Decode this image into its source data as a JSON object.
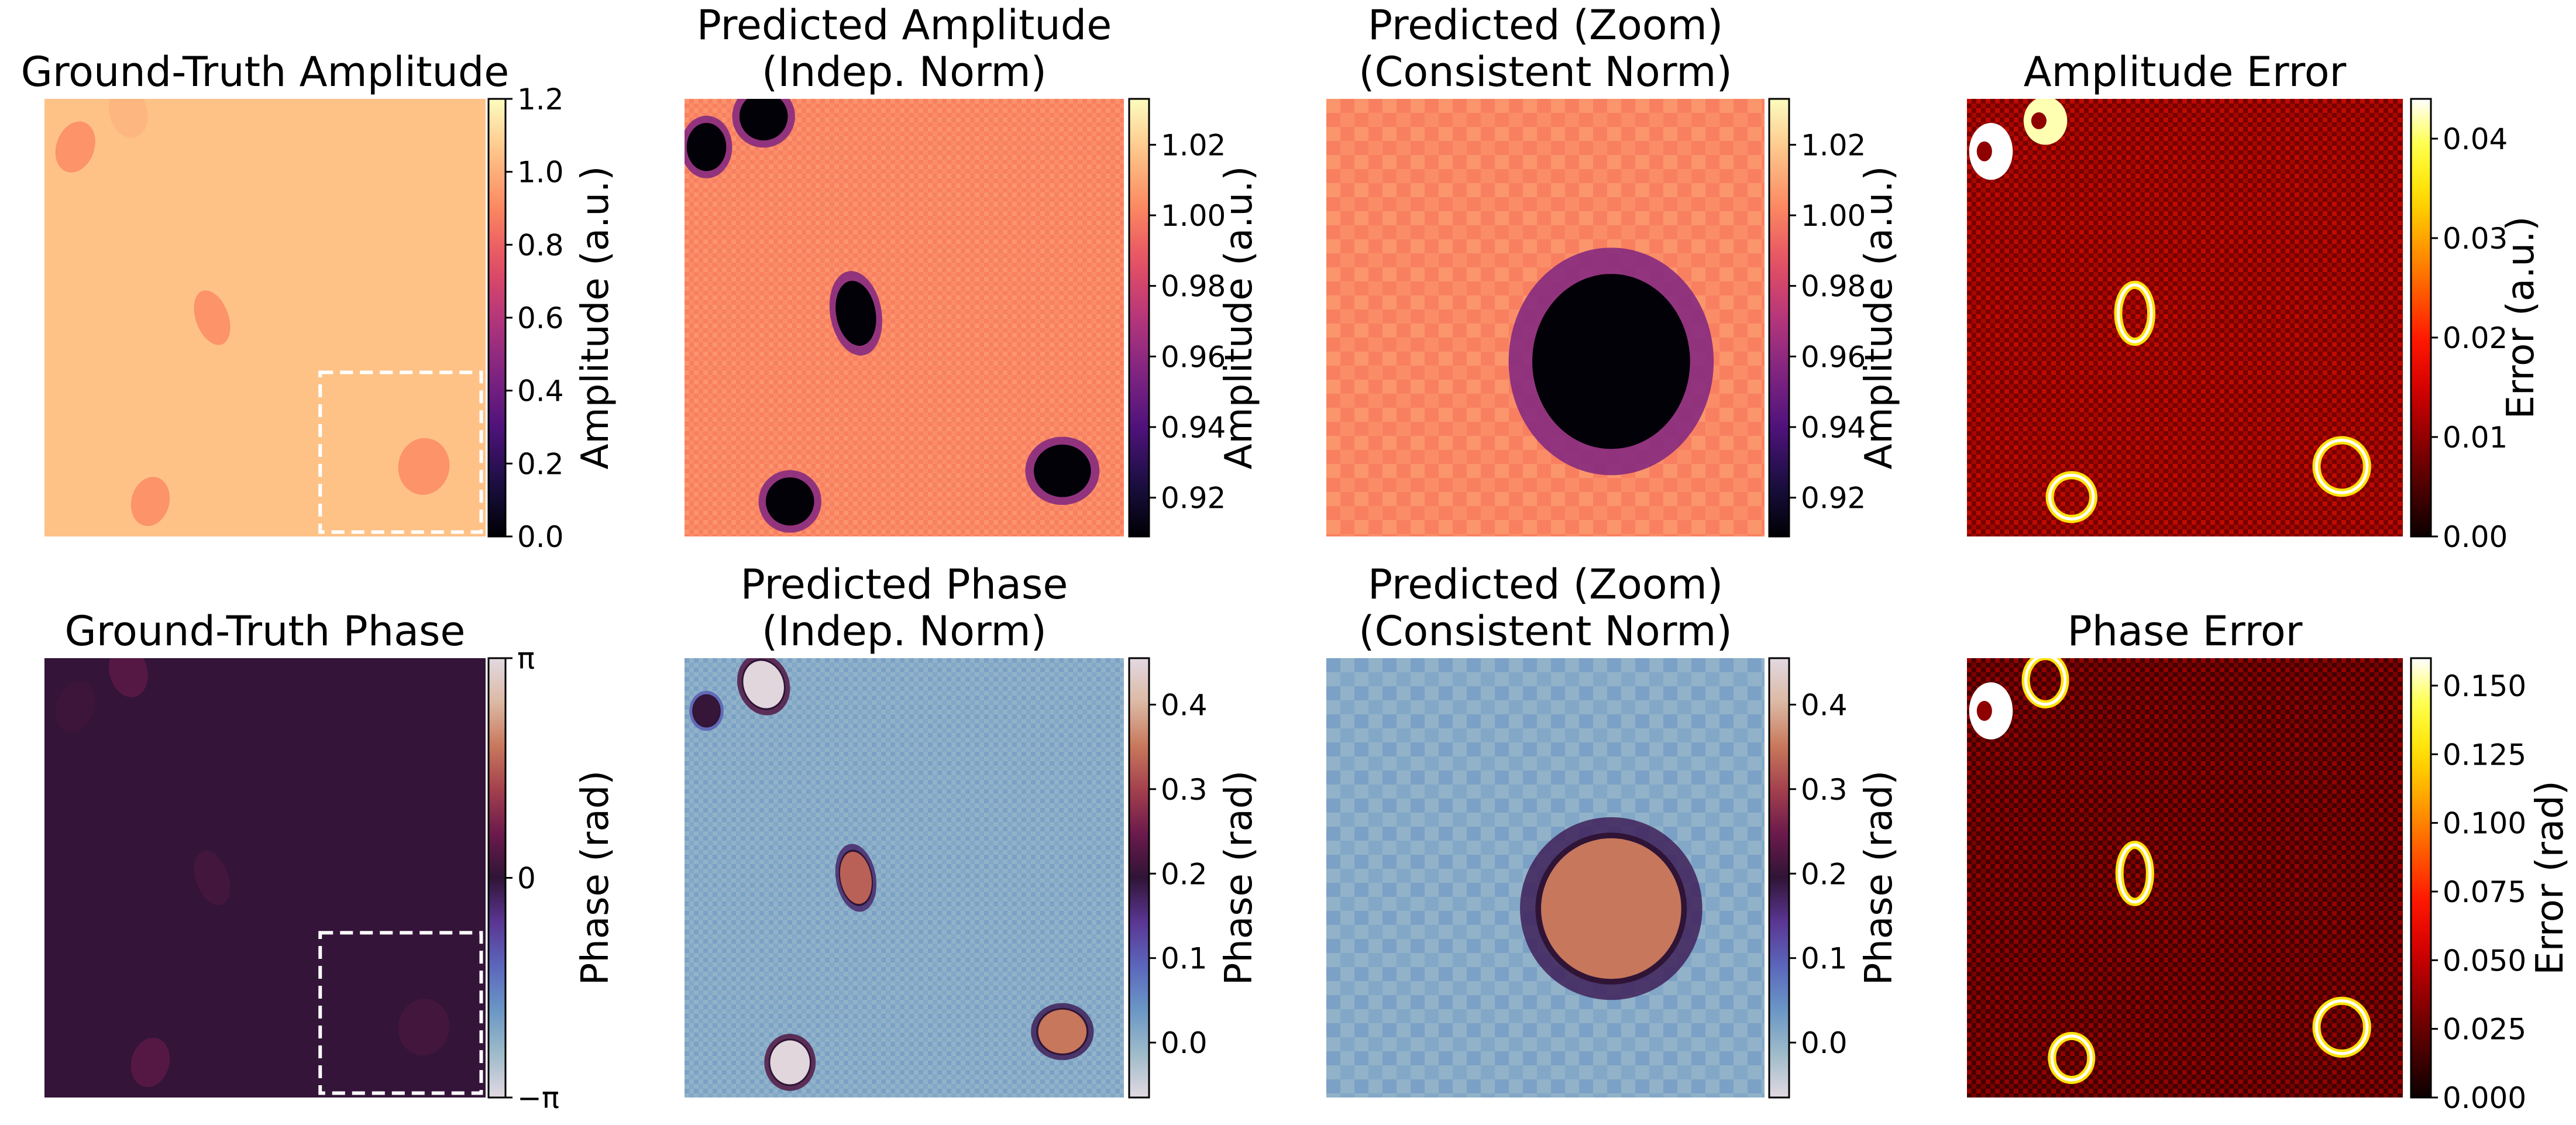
{
  "chart_data": [
    {
      "type": "heatmap",
      "id": "gt-amplitude",
      "title": [
        "Ground-Truth Amplitude"
      ],
      "colormap": "magma",
      "colorbar": {
        "label": "Amplitude (a.u.)",
        "range": [
          0.0,
          1.2
        ],
        "ticks": [
          0.0,
          0.2,
          0.4,
          0.6,
          0.8,
          1.0,
          1.2
        ],
        "tick_labels": [
          "0.0",
          "0.2",
          "0.4",
          "0.6",
          "0.8",
          "1.0",
          "1.2"
        ]
      },
      "background_value": 1.05,
      "blobs": [
        {
          "cx": 0.07,
          "cy": 0.11,
          "rx": 0.043,
          "ry": 0.06,
          "value": 0.93,
          "rotation": 20
        },
        {
          "cx": 0.19,
          "cy": 0.03,
          "rx": 0.043,
          "ry": 0.06,
          "value": 1.02,
          "rotation": -15
        },
        {
          "cx": 0.38,
          "cy": 0.5,
          "rx": 0.037,
          "ry": 0.065,
          "value": 0.93,
          "rotation": -20
        },
        {
          "cx": 0.24,
          "cy": 0.92,
          "rx": 0.043,
          "ry": 0.057,
          "value": 0.93,
          "rotation": 15
        },
        {
          "cx": 0.86,
          "cy": 0.84,
          "rx": 0.058,
          "ry": 0.065,
          "value": 0.93,
          "rotation": 10
        }
      ],
      "zoom_box": {
        "x0": 0.625,
        "y0": 0.625,
        "x1": 0.99,
        "y1": 0.99,
        "style": "dashed",
        "color": "#ffffff"
      }
    },
    {
      "type": "heatmap",
      "id": "pred-amplitude",
      "title": [
        "Predicted Amplitude",
        "(Indep. Norm)"
      ],
      "colormap": "magma",
      "colorbar": {
        "label": "Amplitude (a.u.)",
        "range": [
          0.909,
          1.033
        ],
        "ticks": [
          0.92,
          0.94,
          0.96,
          0.98,
          1.0,
          1.02
        ],
        "tick_labels": [
          "0.92",
          "0.94",
          "0.96",
          "0.98",
          "1.00",
          "1.02"
        ]
      },
      "background_value": 1.0,
      "blobs": [
        {
          "cx": 0.05,
          "cy": 0.11,
          "rx": 0.045,
          "ry": 0.055,
          "value": 0.91,
          "rotation": 0
        },
        {
          "cx": 0.18,
          "cy": 0.04,
          "rx": 0.055,
          "ry": 0.055,
          "value": 0.91,
          "rotation": 0
        },
        {
          "cx": 0.39,
          "cy": 0.49,
          "rx": 0.045,
          "ry": 0.075,
          "value": 0.91,
          "rotation": -10
        },
        {
          "cx": 0.24,
          "cy": 0.92,
          "rx": 0.055,
          "ry": 0.055,
          "value": 0.91,
          "rotation": 0
        },
        {
          "cx": 0.86,
          "cy": 0.85,
          "rx": 0.065,
          "ry": 0.06,
          "value": 0.91,
          "rotation": 0
        }
      ]
    },
    {
      "type": "heatmap",
      "id": "pred-amplitude-zoom",
      "title": [
        "Predicted (Zoom)",
        "(Consistent Norm)"
      ],
      "colormap": "magma",
      "colorbar": {
        "label": "Amplitude (a.u.)",
        "range": [
          0.909,
          1.033
        ],
        "ticks": [
          0.92,
          0.94,
          0.96,
          0.98,
          1.0,
          1.02
        ],
        "tick_labels": [
          "0.92",
          "0.94",
          "0.96",
          "0.98",
          "1.00",
          "1.02"
        ]
      },
      "background_value": 1.0,
      "blobs": [
        {
          "cx": 0.65,
          "cy": 0.6,
          "rx": 0.18,
          "ry": 0.2,
          "value": 0.91,
          "rotation": 0
        }
      ]
    },
    {
      "type": "heatmap",
      "id": "amplitude-error",
      "title": [
        "Amplitude Error"
      ],
      "colormap": "hot",
      "colorbar": {
        "label": "Error (a.u.)",
        "range": [
          0.0,
          0.044
        ],
        "ticks": [
          0.0,
          0.01,
          0.02,
          0.03,
          0.04
        ],
        "tick_labels": [
          "0.00",
          "0.01",
          "0.02",
          "0.03",
          "0.04"
        ]
      },
      "background_value": 0.008,
      "rings": [
        {
          "cx": 0.055,
          "cy": 0.12,
          "rx": 0.05,
          "ry": 0.065,
          "value": 0.044,
          "filled": true
        },
        {
          "cx": 0.18,
          "cy": 0.05,
          "rx": 0.05,
          "ry": 0.055,
          "value": 0.042,
          "filled": true
        },
        {
          "cx": 0.385,
          "cy": 0.49,
          "rx": 0.038,
          "ry": 0.065,
          "value": 0.04,
          "filled": false
        },
        {
          "cx": 0.24,
          "cy": 0.91,
          "rx": 0.05,
          "ry": 0.05,
          "value": 0.04,
          "filled": false
        },
        {
          "cx": 0.86,
          "cy": 0.84,
          "rx": 0.058,
          "ry": 0.06,
          "value": 0.04,
          "filled": false
        }
      ]
    },
    {
      "type": "heatmap",
      "id": "gt-phase",
      "title": [
        "Ground-Truth Phase"
      ],
      "colormap": "twilight",
      "colorbar": {
        "label": "Phase (rad)",
        "range": [
          -3.14159,
          3.14159
        ],
        "ticks": [
          -3.14159,
          0.0,
          3.14159
        ],
        "tick_labels": [
          "−π",
          "0",
          "π"
        ]
      },
      "background_value": 0.05,
      "blobs": [
        {
          "cx": 0.07,
          "cy": 0.11,
          "rx": 0.043,
          "ry": 0.06,
          "value": 0.15,
          "rotation": 20
        },
        {
          "cx": 0.19,
          "cy": 0.03,
          "rx": 0.043,
          "ry": 0.06,
          "value": 0.4,
          "rotation": -15
        },
        {
          "cx": 0.38,
          "cy": 0.5,
          "rx": 0.037,
          "ry": 0.065,
          "value": 0.2,
          "rotation": -20
        },
        {
          "cx": 0.24,
          "cy": 0.92,
          "rx": 0.043,
          "ry": 0.057,
          "value": 0.4,
          "rotation": 15
        },
        {
          "cx": 0.86,
          "cy": 0.84,
          "rx": 0.058,
          "ry": 0.065,
          "value": 0.2,
          "rotation": 10
        }
      ],
      "zoom_box": {
        "x0": 0.625,
        "y0": 0.625,
        "x1": 0.99,
        "y1": 0.99,
        "style": "dashed",
        "color": "#ffffff"
      }
    },
    {
      "type": "heatmap",
      "id": "pred-phase",
      "title": [
        "Predicted Phase",
        "(Indep. Norm)"
      ],
      "colormap": "twilight",
      "colorbar": {
        "label": "Phase (rad)",
        "range": [
          -0.065,
          0.455
        ],
        "ticks": [
          0.0,
          0.1,
          0.2,
          0.3,
          0.4
        ],
        "tick_labels": [
          "0.0",
          "0.1",
          "0.2",
          "0.3",
          "0.4"
        ]
      },
      "background_value": 0.0,
      "blobs": [
        {
          "cx": 0.05,
          "cy": 0.12,
          "rx": 0.03,
          "ry": 0.035,
          "value": 0.2,
          "rotation": 0
        },
        {
          "cx": 0.18,
          "cy": 0.06,
          "rx": 0.045,
          "ry": 0.055,
          "value": 0.45,
          "rotation": -20
        },
        {
          "cx": 0.39,
          "cy": 0.5,
          "rx": 0.035,
          "ry": 0.06,
          "value": 0.33,
          "rotation": -10
        },
        {
          "cx": 0.24,
          "cy": 0.92,
          "rx": 0.045,
          "ry": 0.05,
          "value": 0.45,
          "rotation": 0
        },
        {
          "cx": 0.86,
          "cy": 0.85,
          "rx": 0.055,
          "ry": 0.05,
          "value": 0.35,
          "rotation": 0
        }
      ]
    },
    {
      "type": "heatmap",
      "id": "pred-phase-zoom",
      "title": [
        "Predicted (Zoom)",
        "(Consistent Norm)"
      ],
      "colormap": "twilight",
      "colorbar": {
        "label": "Phase (rad)",
        "range": [
          -0.065,
          0.455
        ],
        "ticks": [
          0.0,
          0.1,
          0.2,
          0.3,
          0.4
        ],
        "tick_labels": [
          "0.0",
          "0.1",
          "0.2",
          "0.3",
          "0.4"
        ]
      },
      "background_value": 0.0,
      "blobs": [
        {
          "cx": 0.65,
          "cy": 0.57,
          "rx": 0.16,
          "ry": 0.16,
          "value": 0.35,
          "rotation": 0
        }
      ]
    },
    {
      "type": "heatmap",
      "id": "phase-error",
      "title": [
        "Phase Error"
      ],
      "colormap": "hot",
      "colorbar": {
        "label": "Error (rad)",
        "range": [
          0.0,
          0.16
        ],
        "ticks": [
          0.0,
          0.025,
          0.05,
          0.075,
          0.1,
          0.125,
          0.15
        ],
        "tick_labels": [
          "0.000",
          "0.025",
          "0.050",
          "0.075",
          "0.100",
          "0.125",
          "0.150"
        ]
      },
      "background_value": 0.015,
      "rings": [
        {
          "cx": 0.055,
          "cy": 0.12,
          "rx": 0.05,
          "ry": 0.065,
          "value": 0.16,
          "filled": true
        },
        {
          "cx": 0.18,
          "cy": 0.05,
          "rx": 0.045,
          "ry": 0.055,
          "value": 0.16,
          "filled": false
        },
        {
          "cx": 0.385,
          "cy": 0.49,
          "rx": 0.035,
          "ry": 0.065,
          "value": 0.16,
          "filled": false
        },
        {
          "cx": 0.24,
          "cy": 0.91,
          "rx": 0.045,
          "ry": 0.05,
          "value": 0.16,
          "filled": false
        },
        {
          "cx": 0.86,
          "cy": 0.84,
          "rx": 0.058,
          "ry": 0.06,
          "value": 0.16,
          "filled": false
        }
      ]
    }
  ]
}
